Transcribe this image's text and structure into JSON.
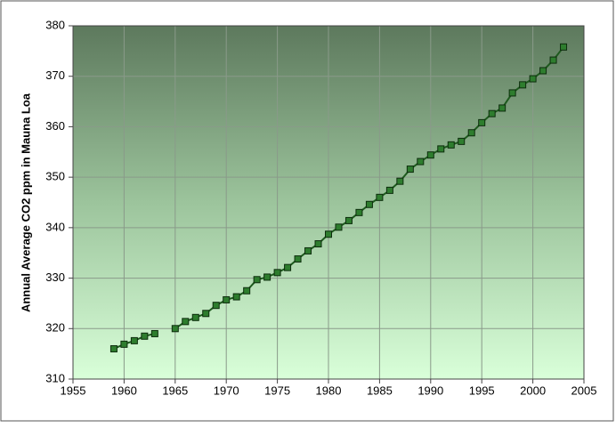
{
  "chart_data": {
    "type": "line",
    "y_label": "Annual Average CO2 ppm in Mauna Loa",
    "x": [
      1959,
      1960,
      1961,
      1962,
      1963,
      1964,
      1965,
      1966,
      1967,
      1968,
      1969,
      1970,
      1971,
      1972,
      1973,
      1974,
      1975,
      1976,
      1977,
      1978,
      1979,
      1980,
      1981,
      1982,
      1983,
      1984,
      1985,
      1986,
      1987,
      1988,
      1989,
      1990,
      1991,
      1992,
      1993,
      1994,
      1995,
      1996,
      1997,
      1998,
      1999,
      2000,
      2001,
      2002,
      2003
    ],
    "series": [
      {
        "color": "#1e5a1e",
        "values": [
          316.0,
          316.9,
          317.6,
          318.5,
          319.0,
          null,
          320.0,
          321.4,
          322.2,
          323.0,
          324.6,
          325.7,
          326.3,
          327.5,
          329.7,
          330.2,
          331.1,
          332.1,
          333.8,
          335.4,
          336.8,
          338.7,
          340.1,
          341.4,
          343.0,
          344.6,
          346.0,
          347.4,
          349.2,
          351.6,
          353.1,
          354.4,
          355.6,
          356.4,
          357.1,
          358.8,
          360.8,
          362.6,
          363.7,
          366.7,
          368.3,
          369.5,
          371.1,
          373.2,
          375.8
        ]
      }
    ],
    "xlim": [
      1955,
      2005
    ],
    "xticks": [
      1955,
      1960,
      1965,
      1970,
      1975,
      1980,
      1985,
      1990,
      1995,
      2000,
      2005
    ],
    "ylim": [
      310,
      380
    ],
    "yticks": [
      310,
      320,
      330,
      340,
      350,
      360,
      370,
      380
    ],
    "grid": true
  }
}
